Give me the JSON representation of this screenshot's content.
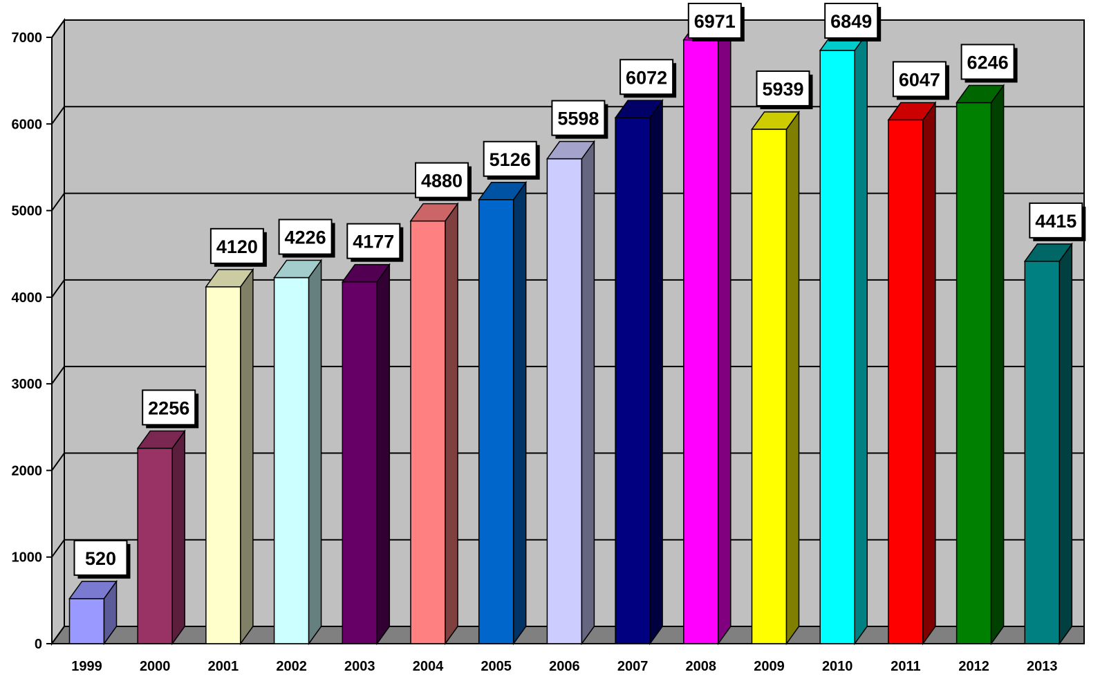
{
  "chart_data": {
    "type": "bar",
    "categories": [
      "1999",
      "2000",
      "2001",
      "2002",
      "2003",
      "2004",
      "2005",
      "2006",
      "2007",
      "2008",
      "2009",
      "2010",
      "2011",
      "2012",
      "2013"
    ],
    "values": [
      520,
      2256,
      4120,
      4226,
      4177,
      4880,
      5126,
      5598,
      6072,
      6971,
      5939,
      6849,
      6047,
      6246,
      4415
    ],
    "ylim": [
      0,
      7000
    ],
    "yticks": [
      "0",
      "1000",
      "2000",
      "3000",
      "4000",
      "5000",
      "6000",
      "7000"
    ],
    "grid": true,
    "three_d": true,
    "title": "",
    "xlabel": "",
    "ylabel": "",
    "colors": [
      {
        "front": "#9999FF",
        "side": "#5B5B99",
        "top": "#7A7AD0"
      },
      {
        "front": "#993366",
        "side": "#5B1E3D",
        "top": "#7A2852"
      },
      {
        "front": "#FFFFCC",
        "side": "#808066",
        "top": "#CCCCA3"
      },
      {
        "front": "#CCFFFF",
        "side": "#668080",
        "top": "#A3CCCC"
      },
      {
        "front": "#660066",
        "side": "#330033",
        "top": "#520052"
      },
      {
        "front": "#FF8080",
        "side": "#804040",
        "top": "#CC6666"
      },
      {
        "front": "#0066CC",
        "side": "#003366",
        "top": "#0052A3"
      },
      {
        "front": "#CCCCFF",
        "side": "#666680",
        "top": "#A3A3CC"
      },
      {
        "front": "#000080",
        "side": "#000040",
        "top": "#000066"
      },
      {
        "front": "#FF00FF",
        "side": "#800080",
        "top": "#CC00CC"
      },
      {
        "front": "#FFFF00",
        "side": "#808000",
        "top": "#CCCC00"
      },
      {
        "front": "#00FFFF",
        "side": "#008080",
        "top": "#00CCCC"
      },
      {
        "front": "#FF0000",
        "side": "#800000",
        "top": "#CC0000"
      },
      {
        "front": "#008000",
        "side": "#004000",
        "top": "#006600"
      },
      {
        "front": "#008080",
        "side": "#004040",
        "top": "#006666"
      }
    ],
    "wall_color": "#C0C0C0",
    "floor_color": "#808080"
  }
}
